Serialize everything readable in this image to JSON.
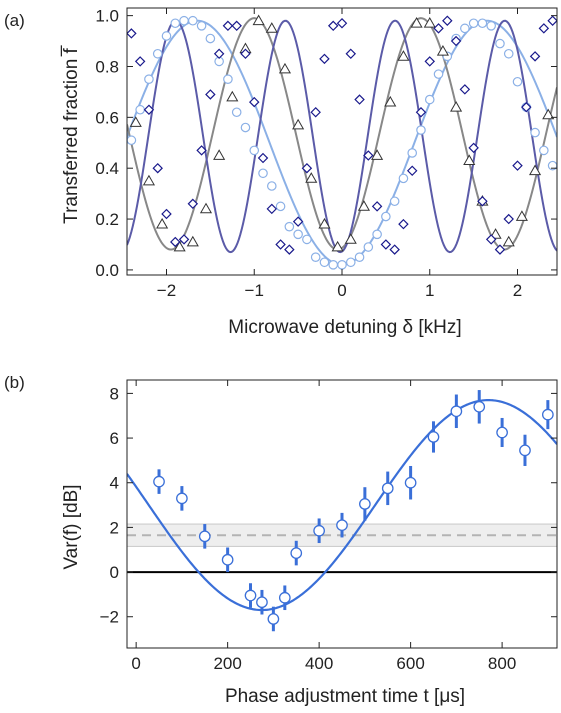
{
  "chart_data": [
    {
      "type": "scatter",
      "panel_label": "(a)",
      "xlabel": "Microwave detuning δ [kHz]",
      "ylabel": "Transferred fraction f̅",
      "xlim": [
        -2.45,
        2.45
      ],
      "ylim": [
        -0.02,
        1.03
      ],
      "x_ticks": [
        -2,
        -1,
        0,
        1,
        2
      ],
      "x_tick_labels": [
        "−2",
        "−1",
        "0",
        "1",
        "2"
      ],
      "y_ticks": [
        0.0,
        0.2,
        0.4,
        0.6,
        0.8,
        1.0
      ],
      "y_tick_labels": [
        "0.0",
        "0.2",
        "0.4",
        "0.6",
        "0.8",
        "1.0"
      ],
      "grid": false,
      "series": [
        {
          "marker": "circle",
          "color": "#8bb0e6",
          "fit": {
            "center": 0,
            "period": 3.3,
            "low": 0.02,
            "high": 0.98,
            "shift": 0
          },
          "x": [
            -2.4,
            -2.3,
            -2.2,
            -2.1,
            -2.0,
            -1.9,
            -1.8,
            -1.7,
            -1.6,
            -1.5,
            -1.4,
            -1.3,
            -1.2,
            -1.1,
            -1.0,
            -0.9,
            -0.8,
            -0.7,
            -0.6,
            -0.5,
            -0.4,
            -0.3,
            -0.2,
            -0.1,
            0.0,
            0.1,
            0.2,
            0.3,
            0.4,
            0.5,
            0.6,
            0.7,
            0.8,
            0.9,
            1.0,
            1.1,
            1.2,
            1.3,
            1.4,
            1.5,
            1.6,
            1.7,
            1.8,
            1.9,
            2.0,
            2.1,
            2.2,
            2.3,
            2.4
          ],
          "y": [
            0.51,
            0.63,
            0.75,
            0.85,
            0.92,
            0.97,
            0.98,
            0.98,
            0.96,
            0.91,
            0.82,
            0.75,
            0.62,
            0.56,
            0.47,
            0.38,
            0.33,
            0.25,
            0.17,
            0.14,
            0.12,
            0.05,
            0.03,
            0.02,
            0.02,
            0.03,
            0.05,
            0.09,
            0.14,
            0.21,
            0.27,
            0.36,
            0.46,
            0.55,
            0.67,
            0.77,
            0.84,
            0.91,
            0.95,
            0.97,
            0.97,
            0.96,
            0.89,
            0.85,
            0.74,
            0.64,
            0.54,
            0.47,
            0.41
          ]
        },
        {
          "marker": "triangle",
          "color": "#888888",
          "fit": {
            "center": -0.05,
            "period": 1.9,
            "low": 0.08,
            "high": 0.99,
            "shift": 0
          },
          "x": [
            -2.35,
            -2.2,
            -2.05,
            -1.85,
            -1.7,
            -1.55,
            -1.4,
            -1.25,
            -1.1,
            -0.95,
            -0.8,
            -0.65,
            -0.5,
            -0.35,
            -0.2,
            -0.05,
            0.1,
            0.25,
            0.4,
            0.55,
            0.7,
            0.85,
            1.0,
            1.15,
            1.3,
            1.45,
            1.6,
            1.75,
            1.9,
            2.05,
            2.2,
            2.35
          ],
          "y": [
            0.58,
            0.35,
            0.18,
            0.09,
            0.11,
            0.24,
            0.45,
            0.68,
            0.87,
            0.98,
            0.95,
            0.79,
            0.57,
            0.36,
            0.18,
            0.09,
            0.12,
            0.25,
            0.45,
            0.66,
            0.84,
            0.97,
            0.97,
            0.86,
            0.64,
            0.43,
            0.27,
            0.14,
            0.11,
            0.21,
            0.39,
            0.61
          ]
        },
        {
          "marker": "diamond",
          "color": "#1a1a8c",
          "fit": {
            "center": -0.02,
            "period": 1.25,
            "low": 0.07,
            "high": 0.98,
            "shift": 0
          },
          "x": [
            -2.4,
            -2.3,
            -2.2,
            -2.1,
            -2.0,
            -1.9,
            -1.8,
            -1.7,
            -1.6,
            -1.5,
            -1.4,
            -1.3,
            -1.2,
            -1.1,
            -1.0,
            -0.9,
            -0.8,
            -0.7,
            -0.6,
            -0.5,
            -0.4,
            -0.3,
            -0.2,
            -0.1,
            0.0,
            0.1,
            0.2,
            0.3,
            0.4,
            0.5,
            0.6,
            0.7,
            0.8,
            0.9,
            1.0,
            1.1,
            1.2,
            1.3,
            1.4,
            1.5,
            1.6,
            1.7,
            1.8,
            1.9,
            2.0,
            2.1,
            2.2,
            2.3,
            2.4
          ],
          "y": [
            0.93,
            0.82,
            0.63,
            0.4,
            0.22,
            0.11,
            0.12,
            0.26,
            0.47,
            0.69,
            0.85,
            0.96,
            0.96,
            0.85,
            0.66,
            0.44,
            0.24,
            0.1,
            0.08,
            0.19,
            0.4,
            0.62,
            0.83,
            0.96,
            0.97,
            0.85,
            0.67,
            0.45,
            0.25,
            0.1,
            0.08,
            0.18,
            0.39,
            0.62,
            0.82,
            0.95,
            0.98,
            0.9,
            0.71,
            0.48,
            0.27,
            0.12,
            0.08,
            0.2,
            0.41,
            0.64,
            0.84,
            0.95,
            0.98
          ]
        }
      ]
    },
    {
      "type": "scatter",
      "panel_label": "(b)",
      "xlabel": "Phase adjustment time t [μs]",
      "ylabel": "Var(f) [dB]",
      "xlim": [
        -20,
        920
      ],
      "ylim": [
        -3.4,
        8.6
      ],
      "x_ticks": [
        0,
        200,
        400,
        600,
        800
      ],
      "x_tick_labels": [
        "0",
        "200",
        "400",
        "600",
        "800"
      ],
      "y_ticks": [
        -2,
        0,
        2,
        4,
        6,
        8
      ],
      "y_tick_labels": [
        "−2",
        "0",
        "2",
        "4",
        "6",
        "8"
      ],
      "grid": false,
      "reference_line": {
        "y": 1.65,
        "band": [
          1.15,
          2.15
        ]
      },
      "zero_line": 0,
      "fit": {
        "mean": 3.0,
        "amplitude": 4.7,
        "period": 990,
        "phase_center": 275
      },
      "colors": {
        "data": "#3a6fd8",
        "fit": "#3a6fd8",
        "band": "#d9d9d9",
        "reference": "#b3b3b3",
        "zero": "#000000"
      },
      "points": [
        {
          "t": 50,
          "value": 4.05,
          "err": 0.55
        },
        {
          "t": 100,
          "value": 3.3,
          "err": 0.55
        },
        {
          "t": 150,
          "value": 1.6,
          "err": 0.55
        },
        {
          "t": 200,
          "value": 0.55,
          "err": 0.55
        },
        {
          "t": 250,
          "value": -1.05,
          "err": 0.55
        },
        {
          "t": 275,
          "value": -1.35,
          "err": 0.55
        },
        {
          "t": 300,
          "value": -2.1,
          "err": 0.55
        },
        {
          "t": 325,
          "value": -1.15,
          "err": 0.55
        },
        {
          "t": 350,
          "value": 0.85,
          "err": 0.55
        },
        {
          "t": 400,
          "value": 1.85,
          "err": 0.55
        },
        {
          "t": 450,
          "value": 2.1,
          "err": 0.55
        },
        {
          "t": 500,
          "value": 3.05,
          "err": 0.75
        },
        {
          "t": 550,
          "value": 3.75,
          "err": 0.75
        },
        {
          "t": 600,
          "value": 4.0,
          "err": 0.75
        },
        {
          "t": 650,
          "value": 6.05,
          "err": 0.7
        },
        {
          "t": 700,
          "value": 7.2,
          "err": 0.75
        },
        {
          "t": 750,
          "value": 7.4,
          "err": 0.75
        },
        {
          "t": 800,
          "value": 6.25,
          "err": 0.65
        },
        {
          "t": 850,
          "value": 5.45,
          "err": 0.7
        },
        {
          "t": 900,
          "value": 7.05,
          "err": 0.65
        }
      ]
    }
  ]
}
